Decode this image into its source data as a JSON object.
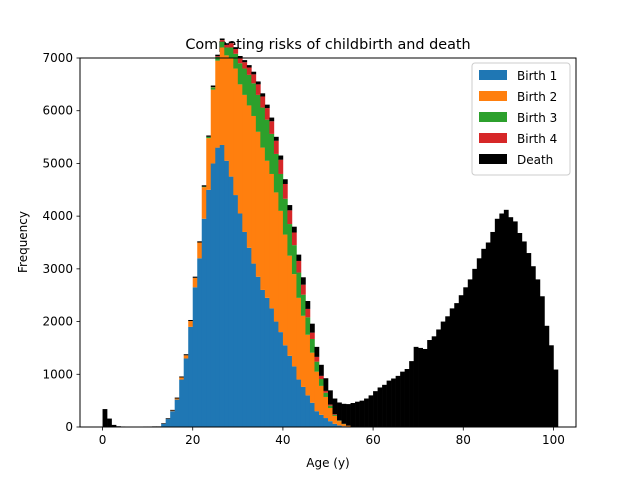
{
  "chart_data": {
    "type": "bar",
    "stacked": true,
    "title": "Competing risks of childbirth and death",
    "xlabel": "Age (y)",
    "ylabel": "Frequency",
    "xlim": [
      -5,
      105
    ],
    "ylim": [
      0,
      7000
    ],
    "xticks": [
      0,
      20,
      40,
      60,
      80,
      100
    ],
    "yticks": [
      0,
      1000,
      2000,
      3000,
      4000,
      5000,
      6000,
      7000
    ],
    "grid": false,
    "legend_position": "top-right",
    "bin_width": 1,
    "bin_start": 0,
    "series": [
      {
        "name": "Birth 1",
        "color": "#1f77b4",
        "values": [
          0,
          0,
          0,
          0,
          0,
          0,
          0,
          0,
          0,
          0,
          0,
          0,
          0,
          60,
          150,
          300,
          520,
          900,
          1300,
          1900,
          2650,
          3200,
          3950,
          4500,
          5000,
          5300,
          5350,
          5050,
          4750,
          4400,
          4050,
          3700,
          3400,
          3100,
          2850,
          2600,
          2450,
          2250,
          2000,
          1800,
          1550,
          1350,
          1150,
          900,
          760,
          600,
          460,
          300,
          230,
          170,
          110,
          60,
          30,
          15,
          5,
          0,
          0,
          0,
          0,
          0,
          0,
          0,
          0,
          0,
          0,
          0,
          0,
          0,
          0,
          0,
          0,
          0,
          0,
          0,
          0,
          0,
          0,
          0,
          0,
          0,
          0,
          0,
          0,
          0,
          0,
          0,
          0,
          0,
          0,
          0,
          0,
          0,
          0,
          0,
          0,
          0,
          0,
          0,
          0,
          0,
          0
        ]
      },
      {
        "name": "Birth 2",
        "color": "#ff7f0e",
        "values": [
          0,
          0,
          0,
          0,
          0,
          0,
          0,
          0,
          0,
          0,
          0,
          0,
          0,
          0,
          0,
          10,
          20,
          40,
          60,
          110,
          180,
          300,
          600,
          980,
          1400,
          1650,
          1850,
          2000,
          2250,
          2400,
          2450,
          2600,
          2700,
          2800,
          2750,
          2700,
          2600,
          2550,
          2450,
          2300,
          2100,
          1900,
          1750,
          1550,
          1350,
          1150,
          950,
          750,
          550,
          400,
          250,
          150,
          80,
          40,
          20,
          5,
          0,
          0,
          0,
          0,
          0,
          0,
          0,
          0,
          0,
          0,
          0,
          0,
          0,
          0,
          0,
          0,
          0,
          0,
          0,
          0,
          0,
          0,
          0,
          0,
          0,
          0,
          0,
          0,
          0,
          0,
          0,
          0,
          0,
          0,
          0,
          0,
          0,
          0,
          0,
          0,
          0,
          0,
          0,
          0,
          0
        ]
      },
      {
        "name": "Birth 3",
        "color": "#2ca02c",
        "values": [
          0,
          0,
          0,
          0,
          0,
          0,
          0,
          0,
          0,
          0,
          0,
          0,
          0,
          0,
          0,
          0,
          0,
          0,
          0,
          0,
          0,
          0,
          10,
          25,
          45,
          70,
          110,
          150,
          200,
          280,
          400,
          500,
          580,
          620,
          700,
          760,
          780,
          760,
          730,
          700,
          680,
          600,
          550,
          480,
          400,
          330,
          260,
          190,
          130,
          80,
          45,
          20,
          10,
          5,
          0,
          0,
          0,
          0,
          0,
          0,
          0,
          0,
          0,
          0,
          0,
          0,
          0,
          0,
          0,
          0,
          0,
          0,
          0,
          0,
          0,
          0,
          0,
          0,
          0,
          0,
          0,
          0,
          0,
          0,
          0,
          0,
          0,
          0,
          0,
          0,
          0,
          0,
          0,
          0,
          0,
          0,
          0,
          0,
          0,
          0,
          0
        ]
      },
      {
        "name": "Birth 4",
        "color": "#d62728",
        "values": [
          0,
          0,
          0,
          0,
          0,
          0,
          0,
          0,
          0,
          0,
          0,
          0,
          0,
          0,
          0,
          0,
          0,
          0,
          0,
          0,
          0,
          0,
          0,
          0,
          5,
          15,
          30,
          50,
          80,
          90,
          100,
          120,
          140,
          170,
          200,
          210,
          220,
          240,
          250,
          270,
          280,
          260,
          240,
          220,
          190,
          160,
          120,
          90,
          60,
          35,
          20,
          10,
          5,
          0,
          0,
          0,
          0,
          0,
          0,
          0,
          0,
          0,
          0,
          0,
          0,
          0,
          0,
          0,
          0,
          0,
          0,
          0,
          0,
          0,
          0,
          0,
          0,
          0,
          0,
          0,
          0,
          0,
          0,
          0,
          0,
          0,
          0,
          0,
          0,
          0,
          0,
          0,
          0,
          0,
          0,
          0,
          0,
          0,
          0,
          0,
          0
        ]
      },
      {
        "name": "Death",
        "color": "#000000",
        "values": [
          340,
          160,
          40,
          15,
          10,
          8,
          8,
          8,
          8,
          10,
          10,
          12,
          12,
          12,
          15,
          15,
          18,
          18,
          20,
          20,
          22,
          22,
          25,
          25,
          28,
          28,
          30,
          30,
          32,
          35,
          38,
          40,
          45,
          50,
          55,
          60,
          65,
          70,
          75,
          80,
          90,
          100,
          110,
          120,
          140,
          150,
          170,
          190,
          210,
          240,
          270,
          300,
          340,
          380,
          410,
          450,
          480,
          500,
          540,
          600,
          680,
          750,
          800,
          880,
          920,
          970,
          1050,
          1100,
          1250,
          1520,
          1500,
          1480,
          1650,
          1720,
          1850,
          2000,
          2100,
          2250,
          2350,
          2500,
          2650,
          2800,
          3000,
          3200,
          3380,
          3500,
          3700,
          3950,
          4050,
          4120,
          3980,
          3900,
          3680,
          3520,
          3300,
          3050,
          2800,
          2480,
          1920,
          1550,
          1090
        ]
      }
    ]
  }
}
